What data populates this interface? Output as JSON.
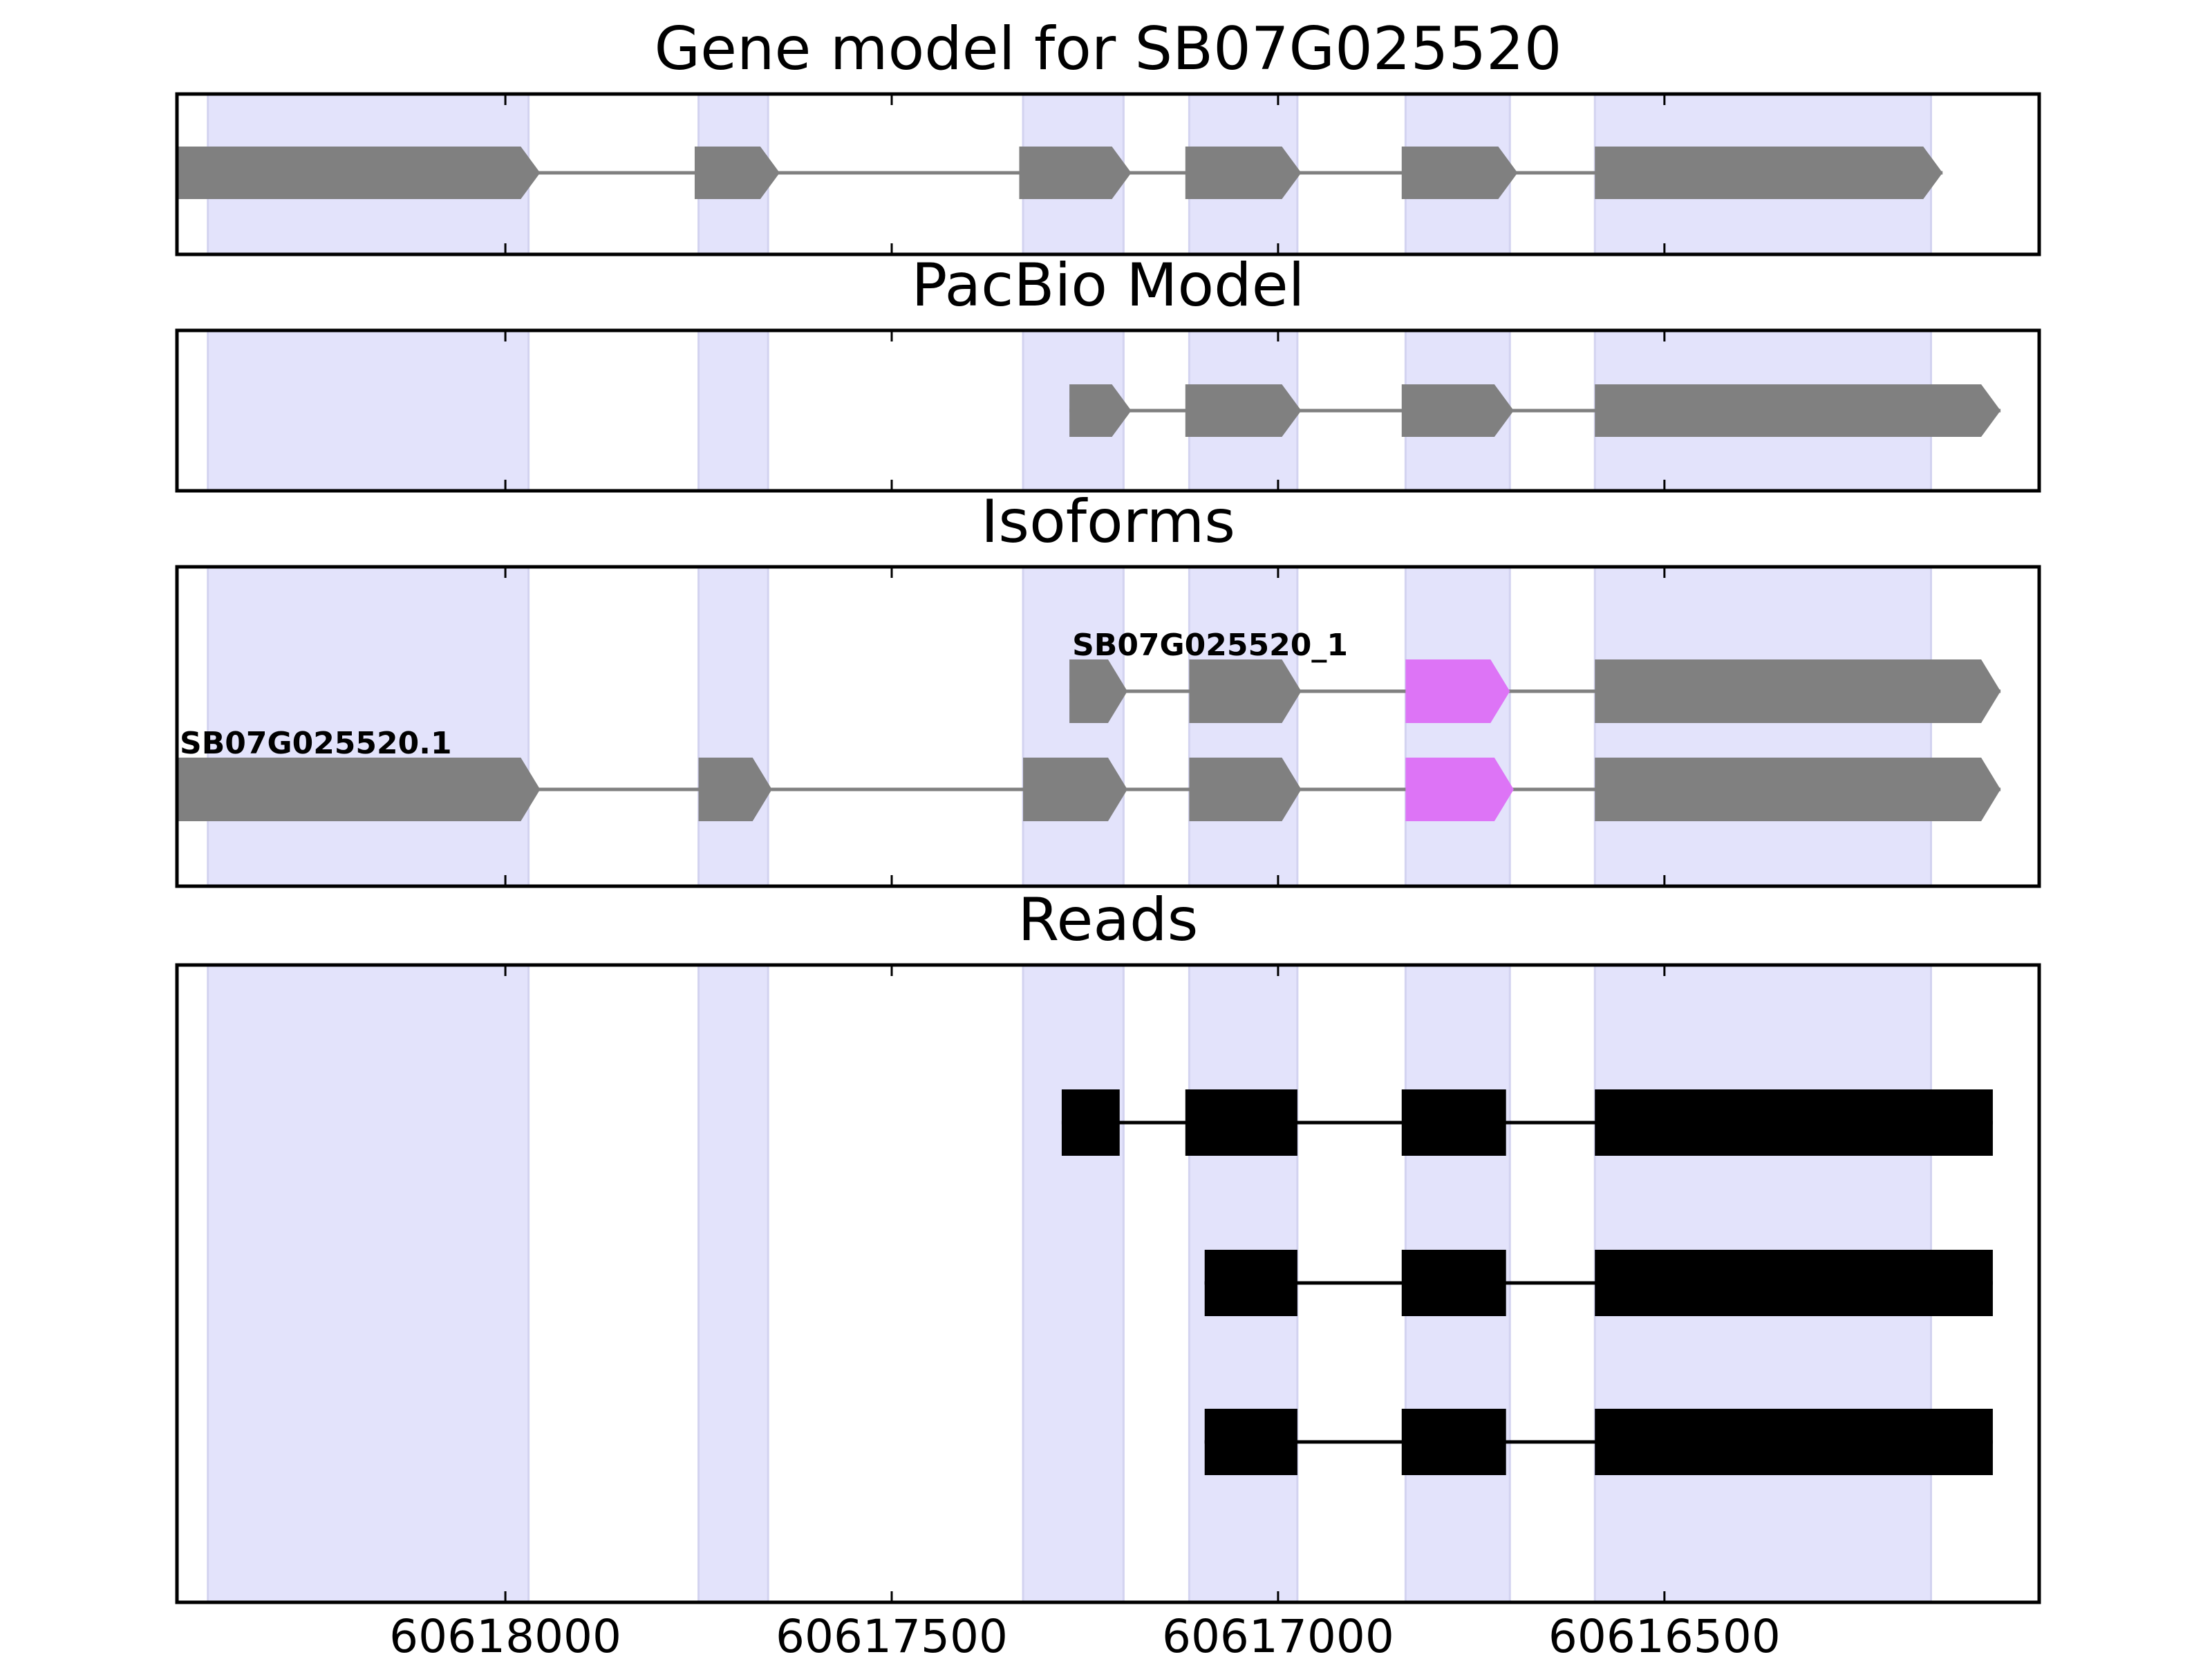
{
  "chart_data": {
    "type": "gene-structure",
    "x_axis": {
      "reversed": true,
      "xlim": [
        60618425,
        60616015
      ],
      "tick_values": [
        60618000,
        60617500,
        60617000,
        60616500
      ],
      "tick_labels": [
        "60618000",
        "60617500",
        "60617000",
        "60616500"
      ]
    },
    "colors": {
      "shading": "#e3e3fb",
      "shading_edge": "#d3d3f0",
      "exon": "#808080",
      "exon_highlight": "#dd74f6",
      "read": "#000000",
      "intron": "#808080"
    },
    "shaded_exon_regions": [
      [
        60618385,
        60617970
      ],
      [
        60617750,
        60617660
      ],
      [
        60617330,
        60617200
      ],
      [
        60617115,
        60616975
      ],
      [
        60616835,
        60616700
      ],
      [
        60616590,
        60616155
      ]
    ],
    "panels": [
      {
        "id": "gene-model",
        "title": "Gene model for SB07G025520",
        "features": [
          {
            "label": "",
            "exons": [
              [
                60618425,
                60617955
              ],
              [
                60617755,
                60617645
              ],
              [
                60617335,
                60617190
              ],
              [
                60617120,
                60616970
              ],
              [
                60616840,
                60616690
              ],
              [
                60616590,
                60616140
              ]
            ]
          }
        ]
      },
      {
        "id": "pacbio-model",
        "title": "PacBio Model",
        "features": [
          {
            "label": "",
            "exons": [
              [
                60617270,
                60617190
              ],
              [
                60617120,
                60616970
              ],
              [
                60616840,
                60616695
              ],
              [
                60616590,
                60616065
              ]
            ]
          }
        ]
      },
      {
        "id": "isoforms",
        "title": "Isoforms",
        "features": [
          {
            "label": "SB07G025520_1",
            "exons": [
              [
                60617270,
                60617195
              ],
              [
                60617115,
                60616970
              ],
              [
                60616835,
                60616700
              ],
              [
                60616590,
                60616065
              ]
            ],
            "highlight_exon": 2
          },
          {
            "label": "SB07G025520.1",
            "exons": [
              [
                60618425,
                60617955
              ],
              [
                60617750,
                60617655
              ],
              [
                60617330,
                60617195
              ],
              [
                60617115,
                60616970
              ],
              [
                60616835,
                60616695
              ],
              [
                60616590,
                60616065
              ]
            ],
            "highlight_exon": 4
          }
        ]
      },
      {
        "id": "reads",
        "title": "Reads",
        "features": [
          {
            "label": "",
            "exons": [
              [
                60617280,
                60617205
              ],
              [
                60617120,
                60616975
              ],
              [
                60616840,
                60616705
              ],
              [
                60616590,
                60616075
              ]
            ]
          },
          {
            "label": "",
            "exons": [
              [
                60617095,
                60616975
              ],
              [
                60616840,
                60616705
              ],
              [
                60616590,
                60616075
              ]
            ]
          },
          {
            "label": "",
            "exons": [
              [
                60617095,
                60616975
              ],
              [
                60616840,
                60616705
              ],
              [
                60616590,
                60616075
              ]
            ]
          }
        ]
      }
    ]
  }
}
